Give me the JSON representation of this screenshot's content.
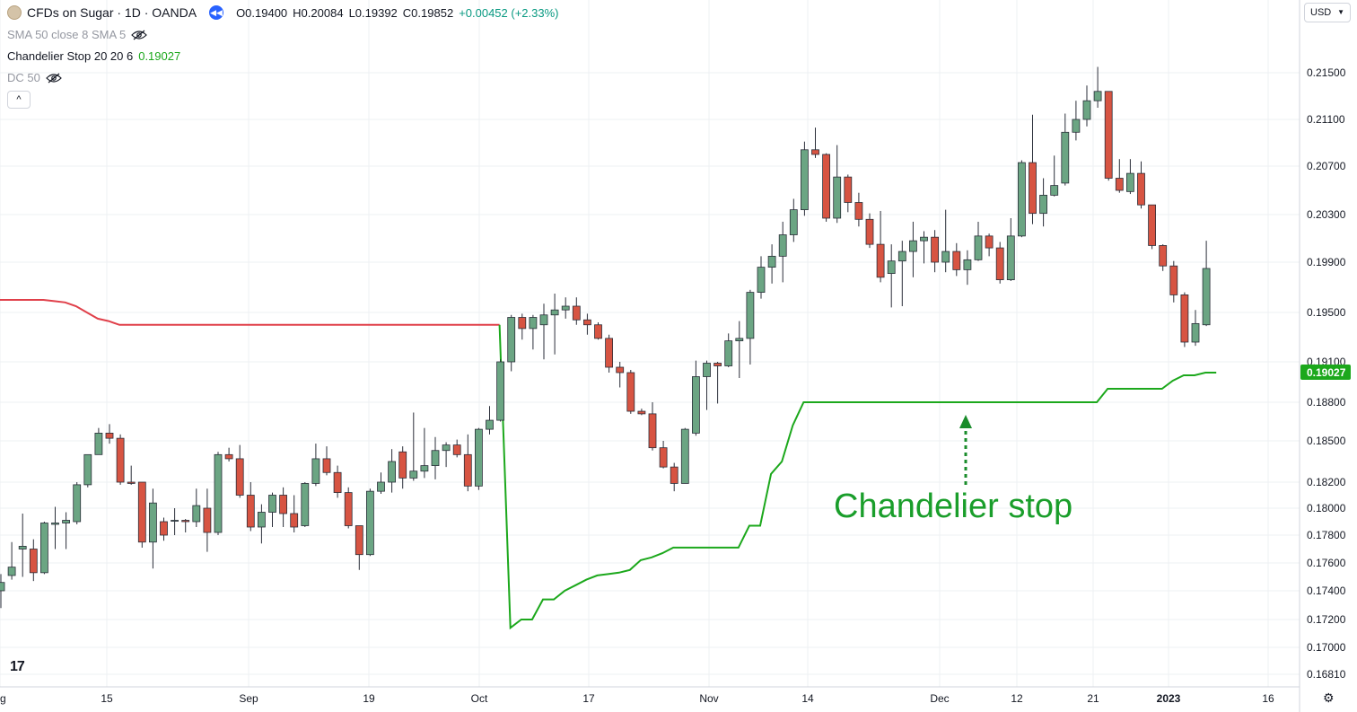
{
  "header": {
    "symbol": "CFDs on Sugar · 1D · OANDA",
    "open": "O0.19400",
    "high": "H0.20084",
    "low": "L0.19392",
    "close": "C0.19852",
    "change": "+0.00452 (+2.33%)",
    "indicators": [
      {
        "label": "SMA 50 close 8 SMA 5",
        "value": "",
        "hidden": true
      },
      {
        "label": "Chandelier Stop 20 20 6",
        "value": "0.19027",
        "hidden": false
      },
      {
        "label": "DC 50",
        "value": "",
        "hidden": true
      }
    ],
    "collapse_glyph": "^"
  },
  "currency": "USD",
  "logo_text": "17",
  "colors": {
    "up": "#6ba583",
    "down": "#d75442",
    "stop_up": "#1ca81c",
    "stop_down": "#e0404a",
    "grid": "#eef0f3"
  },
  "chart_data": {
    "type": "candlestick",
    "y_ticks": [
      "0.21500",
      "0.21100",
      "0.20700",
      "0.20300",
      "0.19900",
      "0.19500",
      "0.19100",
      "0.18800",
      "0.18500",
      "0.18200",
      "0.18000",
      "0.17800",
      "0.17600",
      "0.17400",
      "0.17200",
      "0.17000",
      "0.16810"
    ],
    "x_ticks": [
      "g",
      "15",
      "Sep",
      "19",
      "Oct",
      "17",
      "Nov",
      "14",
      "Dec",
      "12",
      "21",
      "2023",
      "16"
    ],
    "last_value_label": "0.19027",
    "annotation": "Chandelier stop",
    "candles": [
      {
        "o": 0.174,
        "h": 0.1752,
        "l": 0.1728,
        "c": 0.1746
      },
      {
        "o": 0.1751,
        "h": 0.1775,
        "l": 0.1748,
        "c": 0.1757
      },
      {
        "o": 0.177,
        "h": 0.1796,
        "l": 0.175,
        "c": 0.1772
      },
      {
        "o": 0.177,
        "h": 0.1777,
        "l": 0.1747,
        "c": 0.1753
      },
      {
        "o": 0.1753,
        "h": 0.179,
        "l": 0.1752,
        "c": 0.1789
      },
      {
        "o": 0.1788,
        "h": 0.1801,
        "l": 0.177,
        "c": 0.1789
      },
      {
        "o": 0.1789,
        "h": 0.1797,
        "l": 0.177,
        "c": 0.1791
      },
      {
        "o": 0.179,
        "h": 0.182,
        "l": 0.1788,
        "c": 0.1818
      },
      {
        "o": 0.1818,
        "h": 0.184,
        "l": 0.1816,
        "c": 0.184
      },
      {
        "o": 0.184,
        "h": 0.186,
        "l": 0.184,
        "c": 0.1856
      },
      {
        "o": 0.1856,
        "h": 0.1863,
        "l": 0.1848,
        "c": 0.1852
      },
      {
        "o": 0.1852,
        "h": 0.1855,
        "l": 0.1818,
        "c": 0.182
      },
      {
        "o": 0.182,
        "h": 0.1832,
        "l": 0.1818,
        "c": 0.1819
      },
      {
        "o": 0.182,
        "h": 0.182,
        "l": 0.1771,
        "c": 0.1775
      },
      {
        "o": 0.1775,
        "h": 0.1815,
        "l": 0.1756,
        "c": 0.1804
      },
      {
        "o": 0.179,
        "h": 0.1793,
        "l": 0.1776,
        "c": 0.178
      },
      {
        "o": 0.1791,
        "h": 0.18,
        "l": 0.178,
        "c": 0.1791
      },
      {
        "o": 0.1791,
        "h": 0.1792,
        "l": 0.1782,
        "c": 0.179
      },
      {
        "o": 0.179,
        "h": 0.1815,
        "l": 0.1786,
        "c": 0.1802
      },
      {
        "o": 0.18,
        "h": 0.1815,
        "l": 0.1768,
        "c": 0.1782
      },
      {
        "o": 0.1782,
        "h": 0.1842,
        "l": 0.178,
        "c": 0.184
      },
      {
        "o": 0.184,
        "h": 0.1845,
        "l": 0.1835,
        "c": 0.1837
      },
      {
        "o": 0.1837,
        "h": 0.1847,
        "l": 0.1808,
        "c": 0.181
      },
      {
        "o": 0.181,
        "h": 0.182,
        "l": 0.1783,
        "c": 0.1786
      },
      {
        "o": 0.1786,
        "h": 0.1803,
        "l": 0.1774,
        "c": 0.1797
      },
      {
        "o": 0.1797,
        "h": 0.1812,
        "l": 0.1786,
        "c": 0.181
      },
      {
        "o": 0.181,
        "h": 0.1816,
        "l": 0.1786,
        "c": 0.1796
      },
      {
        "o": 0.1796,
        "h": 0.181,
        "l": 0.1782,
        "c": 0.1786
      },
      {
        "o": 0.1787,
        "h": 0.182,
        "l": 0.1786,
        "c": 0.1819
      },
      {
        "o": 0.1819,
        "h": 0.1848,
        "l": 0.1817,
        "c": 0.1837
      },
      {
        "o": 0.1837,
        "h": 0.1846,
        "l": 0.1825,
        "c": 0.1827
      },
      {
        "o": 0.1827,
        "h": 0.1832,
        "l": 0.1808,
        "c": 0.1812
      },
      {
        "o": 0.1812,
        "h": 0.1816,
        "l": 0.1785,
        "c": 0.1787
      },
      {
        "o": 0.1787,
        "h": 0.1787,
        "l": 0.1755,
        "c": 0.1766
      },
      {
        "o": 0.1766,
        "h": 0.1815,
        "l": 0.1765,
        "c": 0.1813
      },
      {
        "o": 0.1813,
        "h": 0.1827,
        "l": 0.1811,
        "c": 0.182
      },
      {
        "o": 0.182,
        "h": 0.1844,
        "l": 0.1812,
        "c": 0.1835
      },
      {
        "o": 0.1842,
        "h": 0.1846,
        "l": 0.1815,
        "c": 0.1823
      },
      {
        "o": 0.1823,
        "h": 0.1872,
        "l": 0.1821,
        "c": 0.1828
      },
      {
        "o": 0.1828,
        "h": 0.186,
        "l": 0.1823,
        "c": 0.1832
      },
      {
        "o": 0.1832,
        "h": 0.1853,
        "l": 0.1822,
        "c": 0.1843
      },
      {
        "o": 0.1843,
        "h": 0.1849,
        "l": 0.1831,
        "c": 0.1847
      },
      {
        "o": 0.1847,
        "h": 0.1851,
        "l": 0.1838,
        "c": 0.184
      },
      {
        "o": 0.184,
        "h": 0.1855,
        "l": 0.1813,
        "c": 0.1817
      },
      {
        "o": 0.1817,
        "h": 0.186,
        "l": 0.1814,
        "c": 0.1859
      },
      {
        "o": 0.1859,
        "h": 0.1877,
        "l": 0.1855,
        "c": 0.1866
      },
      {
        "o": 0.1866,
        "h": 0.1912,
        "l": 0.1865,
        "c": 0.191
      },
      {
        "o": 0.191,
        "h": 0.1948,
        "l": 0.1903,
        "c": 0.1946
      },
      {
        "o": 0.1946,
        "h": 0.1949,
        "l": 0.1928,
        "c": 0.1937
      },
      {
        "o": 0.1937,
        "h": 0.1948,
        "l": 0.192,
        "c": 0.1946
      },
      {
        "o": 0.194,
        "h": 0.1957,
        "l": 0.1912,
        "c": 0.1948
      },
      {
        "o": 0.1948,
        "h": 0.1965,
        "l": 0.1916,
        "c": 0.1952
      },
      {
        "o": 0.1952,
        "h": 0.1962,
        "l": 0.1945,
        "c": 0.1955
      },
      {
        "o": 0.1955,
        "h": 0.1962,
        "l": 0.194,
        "c": 0.1944
      },
      {
        "o": 0.1944,
        "h": 0.1949,
        "l": 0.1932,
        "c": 0.194
      },
      {
        "o": 0.194,
        "h": 0.1942,
        "l": 0.1928,
        "c": 0.1929
      },
      {
        "o": 0.1929,
        "h": 0.1932,
        "l": 0.1902,
        "c": 0.1906
      },
      {
        "o": 0.1906,
        "h": 0.191,
        "l": 0.1891,
        "c": 0.1902
      },
      {
        "o": 0.1902,
        "h": 0.1904,
        "l": 0.1871,
        "c": 0.1873
      },
      {
        "o": 0.1873,
        "h": 0.1875,
        "l": 0.187,
        "c": 0.1871
      },
      {
        "o": 0.1871,
        "h": 0.188,
        "l": 0.1843,
        "c": 0.1845
      },
      {
        "o": 0.1845,
        "h": 0.185,
        "l": 0.183,
        "c": 0.1831
      },
      {
        "o": 0.1831,
        "h": 0.1834,
        "l": 0.1813,
        "c": 0.1819
      },
      {
        "o": 0.1819,
        "h": 0.186,
        "l": 0.1819,
        "c": 0.1859
      },
      {
        "o": 0.1856,
        "h": 0.1911,
        "l": 0.1854,
        "c": 0.1899
      },
      {
        "o": 0.1899,
        "h": 0.1911,
        "l": 0.1874,
        "c": 0.1909
      },
      {
        "o": 0.1909,
        "h": 0.191,
        "l": 0.1879,
        "c": 0.1907
      },
      {
        "o": 0.1907,
        "h": 0.1933,
        "l": 0.1906,
        "c": 0.1927
      },
      {
        "o": 0.1927,
        "h": 0.1943,
        "l": 0.1898,
        "c": 0.1929
      },
      {
        "o": 0.1929,
        "h": 0.1968,
        "l": 0.1908,
        "c": 0.1966
      },
      {
        "o": 0.1966,
        "h": 0.1995,
        "l": 0.1961,
        "c": 0.1986
      },
      {
        "o": 0.1986,
        "h": 0.2005,
        "l": 0.1973,
        "c": 0.1995
      },
      {
        "o": 0.1995,
        "h": 0.2024,
        "l": 0.1974,
        "c": 0.2013
      },
      {
        "o": 0.2013,
        "h": 0.2043,
        "l": 0.2007,
        "c": 0.2034
      },
      {
        "o": 0.2034,
        "h": 0.2091,
        "l": 0.2029,
        "c": 0.2084
      },
      {
        "o": 0.2084,
        "h": 0.2103,
        "l": 0.2077,
        "c": 0.208
      },
      {
        "o": 0.208,
        "h": 0.2081,
        "l": 0.2024,
        "c": 0.2027
      },
      {
        "o": 0.2027,
        "h": 0.2088,
        "l": 0.2023,
        "c": 0.2061
      },
      {
        "o": 0.2061,
        "h": 0.2063,
        "l": 0.2032,
        "c": 0.204
      },
      {
        "o": 0.204,
        "h": 0.2048,
        "l": 0.202,
        "c": 0.2026
      },
      {
        "o": 0.2026,
        "h": 0.2031,
        "l": 0.2002,
        "c": 0.2005
      },
      {
        "o": 0.2005,
        "h": 0.2033,
        "l": 0.1974,
        "c": 0.1978
      },
      {
        "o": 0.1981,
        "h": 0.2005,
        "l": 0.1954,
        "c": 0.1991
      },
      {
        "o": 0.1991,
        "h": 0.2008,
        "l": 0.1955,
        "c": 0.1999
      },
      {
        "o": 0.1999,
        "h": 0.2024,
        "l": 0.1978,
        "c": 0.2008
      },
      {
        "o": 0.2008,
        "h": 0.2016,
        "l": 0.1989,
        "c": 0.2011
      },
      {
        "o": 0.2011,
        "h": 0.2017,
        "l": 0.1982,
        "c": 0.199
      },
      {
        "o": 0.199,
        "h": 0.2034,
        "l": 0.1982,
        "c": 0.1999
      },
      {
        "o": 0.1999,
        "h": 0.2006,
        "l": 0.1979,
        "c": 0.1984
      },
      {
        "o": 0.1984,
        "h": 0.2,
        "l": 0.1972,
        "c": 0.1992
      },
      {
        "o": 0.1992,
        "h": 0.2024,
        "l": 0.1991,
        "c": 0.2012
      },
      {
        "o": 0.2012,
        "h": 0.2014,
        "l": 0.1995,
        "c": 0.2002
      },
      {
        "o": 0.2002,
        "h": 0.2007,
        "l": 0.1973,
        "c": 0.1976
      },
      {
        "o": 0.1976,
        "h": 0.2027,
        "l": 0.1975,
        "c": 0.2012
      },
      {
        "o": 0.2012,
        "h": 0.2075,
        "l": 0.2011,
        "c": 0.2073
      },
      {
        "o": 0.2073,
        "h": 0.2114,
        "l": 0.2022,
        "c": 0.2031
      },
      {
        "o": 0.2031,
        "h": 0.206,
        "l": 0.202,
        "c": 0.2046
      },
      {
        "o": 0.2046,
        "h": 0.2079,
        "l": 0.2045,
        "c": 0.2054
      },
      {
        "o": 0.2056,
        "h": 0.2115,
        "l": 0.2054,
        "c": 0.2099
      },
      {
        "o": 0.2099,
        "h": 0.2126,
        "l": 0.2092,
        "c": 0.211
      },
      {
        "o": 0.211,
        "h": 0.2139,
        "l": 0.2104,
        "c": 0.2126
      },
      {
        "o": 0.2126,
        "h": 0.2155,
        "l": 0.212,
        "c": 0.2134
      },
      {
        "o": 0.2134,
        "h": 0.2134,
        "l": 0.2058,
        "c": 0.206
      },
      {
        "o": 0.206,
        "h": 0.2076,
        "l": 0.2048,
        "c": 0.205
      },
      {
        "o": 0.2049,
        "h": 0.2076,
        "l": 0.2047,
        "c": 0.2064
      },
      {
        "o": 0.2064,
        "h": 0.2074,
        "l": 0.2035,
        "c": 0.2038
      },
      {
        "o": 0.2038,
        "h": 0.2038,
        "l": 0.2001,
        "c": 0.2004
      },
      {
        "o": 0.2004,
        "h": 0.2005,
        "l": 0.1983,
        "c": 0.1987
      },
      {
        "o": 0.1987,
        "h": 0.1991,
        "l": 0.1958,
        "c": 0.1964
      },
      {
        "o": 0.1964,
        "h": 0.1966,
        "l": 0.1922,
        "c": 0.1926
      },
      {
        "o": 0.1926,
        "h": 0.1952,
        "l": 0.1923,
        "c": 0.1941
      },
      {
        "o": 0.194,
        "h": 0.2008,
        "l": 0.1939,
        "c": 0.1985
      }
    ],
    "stop_red": [
      0.196,
      0.196,
      0.196,
      0.196,
      0.196,
      0.1959,
      0.1958,
      0.1955,
      0.195,
      0.1945,
      0.1943,
      0.194,
      0.194,
      0.194,
      0.194,
      0.194,
      0.194,
      0.194,
      0.194,
      0.194,
      0.194,
      0.194,
      0.194,
      0.194,
      0.194,
      0.194,
      0.194,
      0.194,
      0.194,
      0.194,
      0.194,
      0.194,
      0.194,
      0.194,
      0.194,
      0.194,
      0.194,
      0.194,
      0.194,
      0.194,
      0.194,
      0.194,
      0.194,
      0.194,
      0.194,
      0.194,
      0.194
    ],
    "stop_green": [
      0.1714,
      0.172,
      0.172,
      0.1734,
      0.1734,
      0.174,
      0.1744,
      0.1748,
      0.1751,
      0.1752,
      0.1753,
      0.1755,
      0.1762,
      0.1764,
      0.1767,
      0.1771,
      0.1771,
      0.1771,
      0.1771,
      0.1771,
      0.1771,
      0.1771,
      0.1787,
      0.1787,
      0.1826,
      0.1835,
      0.1862,
      0.188,
      0.188,
      0.188,
      0.188,
      0.188,
      0.188,
      0.188,
      0.188,
      0.188,
      0.188,
      0.188,
      0.188,
      0.188,
      0.188,
      0.188,
      0.188,
      0.188,
      0.188,
      0.188,
      0.188,
      0.188,
      0.188,
      0.188,
      0.188,
      0.188,
      0.188,
      0.188,
      0.188,
      0.189,
      0.189,
      0.189,
      0.189,
      0.189,
      0.189,
      0.1896,
      0.19,
      0.19,
      0.1902,
      0.1902
    ]
  }
}
